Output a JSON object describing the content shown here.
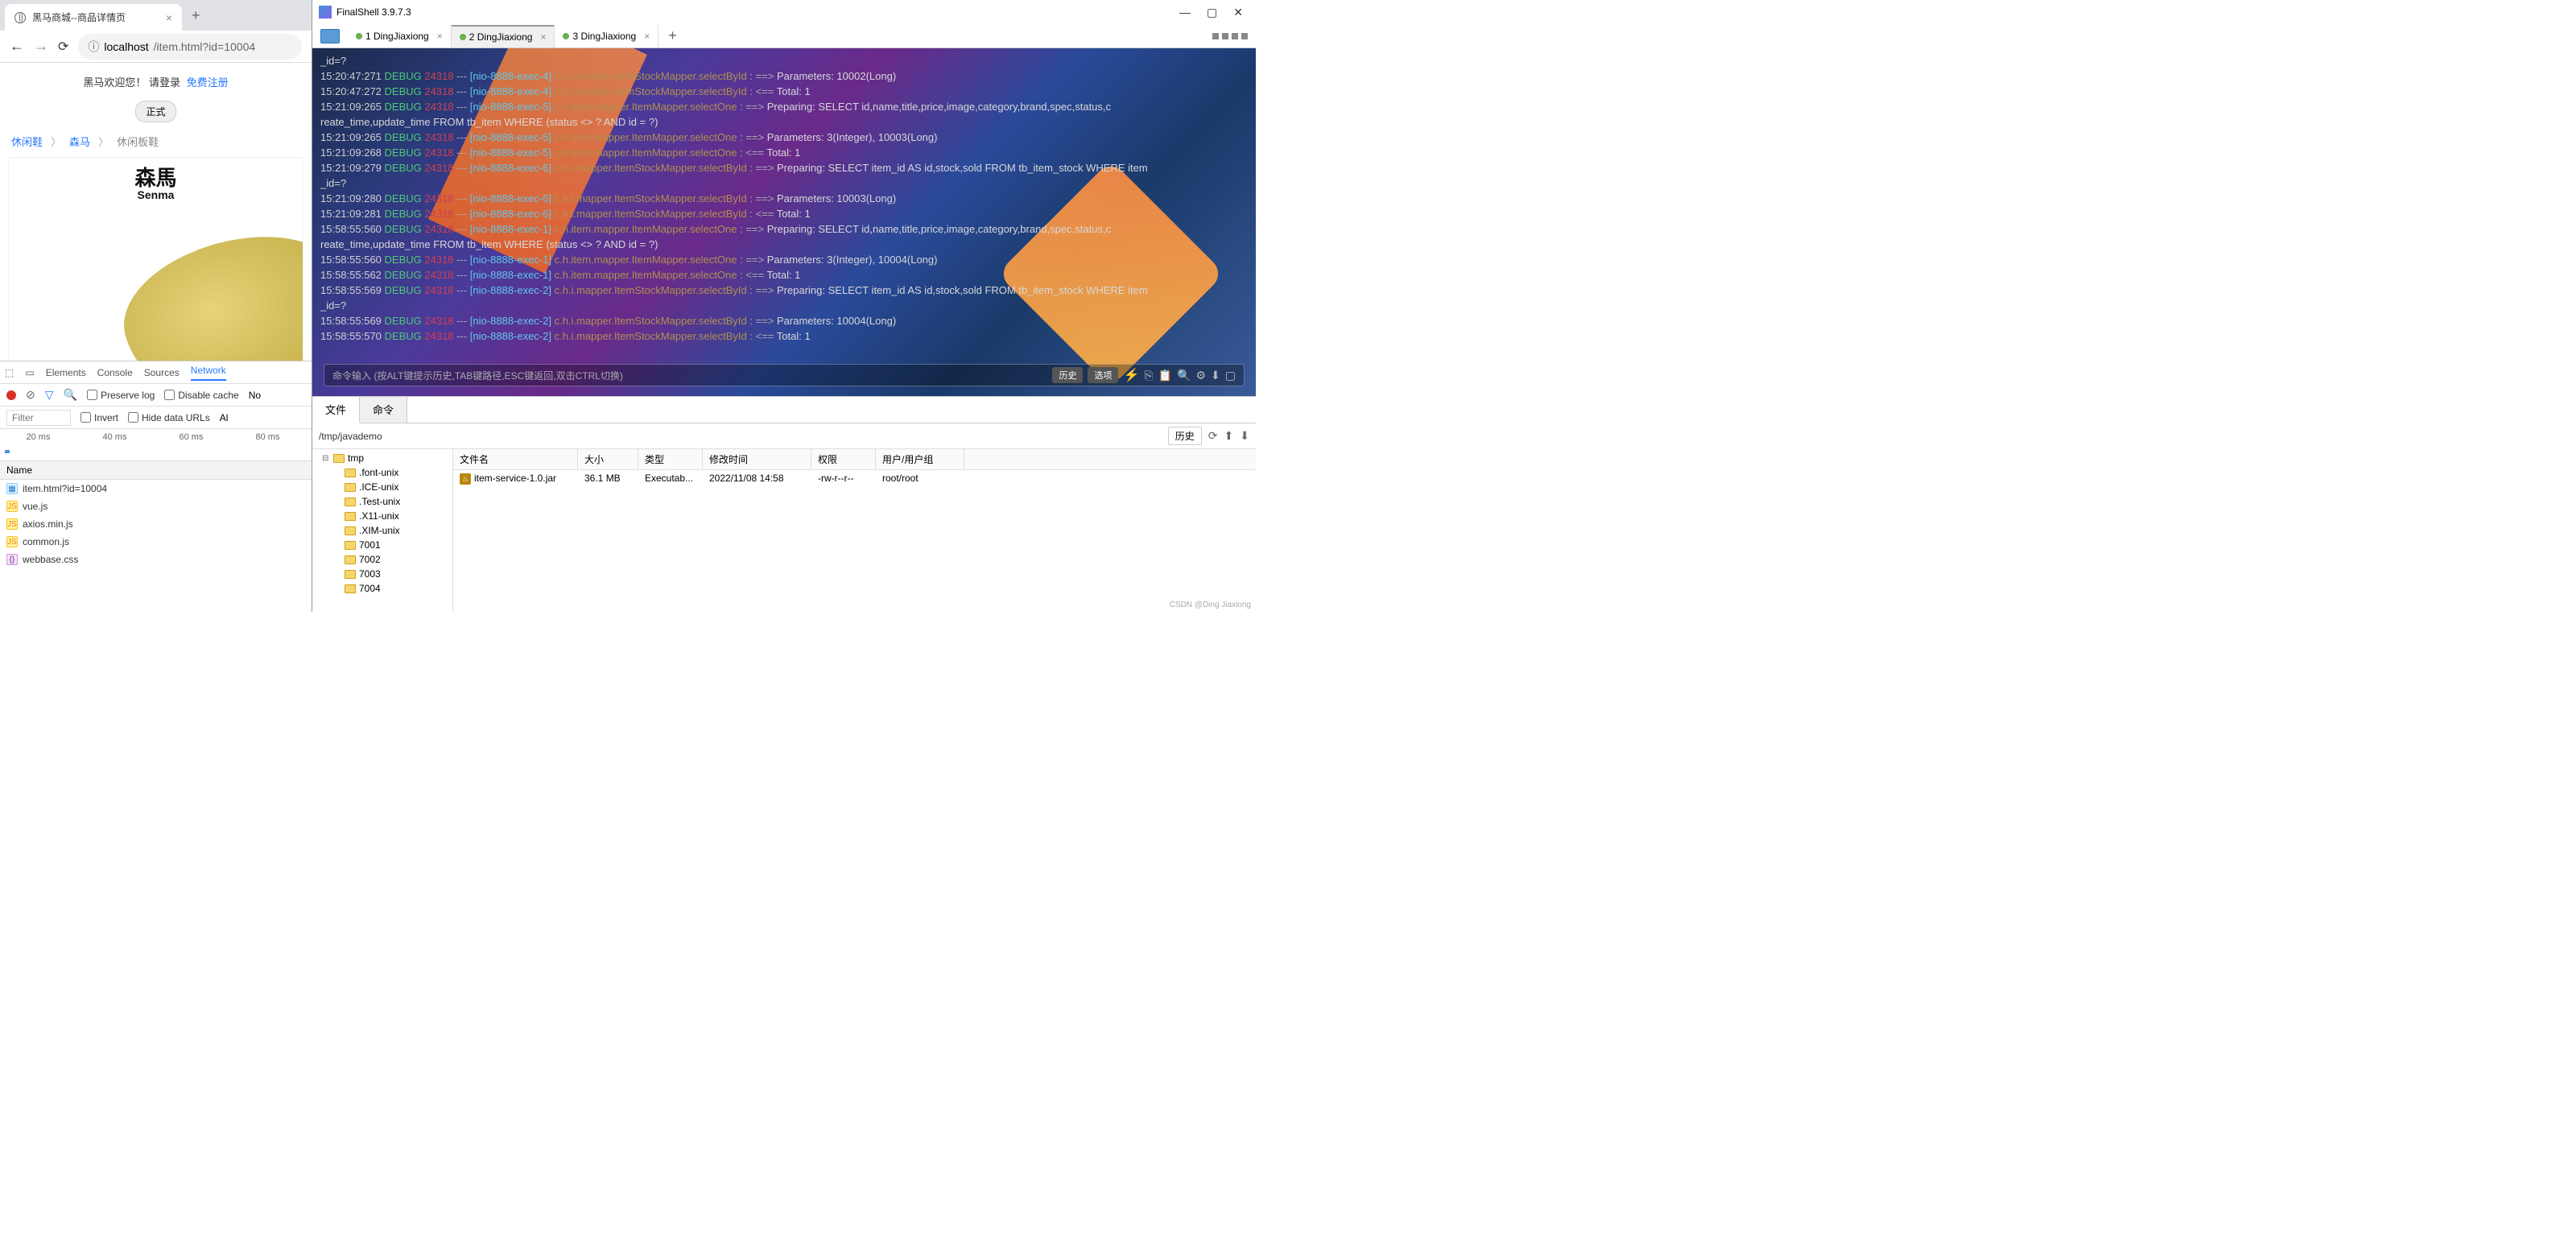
{
  "browser": {
    "tab_title": "黑马商城--商品详情页",
    "url_prefix": "localhost",
    "url_path": "/item.html?id=10004",
    "welcome": "黑马欢迎您！",
    "login": "请登录",
    "register": "免费注册",
    "badge": "正式",
    "breadcrumb": {
      "c1": "休闲鞋",
      "c2": "森马",
      "c3": "休闲板鞋",
      "sep": "〉"
    },
    "brand_cn": "森馬",
    "brand_en": "Senma"
  },
  "devtools": {
    "tabs": [
      "Elements",
      "Console",
      "Sources",
      "Network"
    ],
    "active_tab": "Network",
    "preserve": "Preserve log",
    "disable": "Disable cache",
    "more": "No",
    "filter_placeholder": "Filter",
    "invert": "Invert",
    "hide_data": "Hide data URLs",
    "all": "Al",
    "wf": [
      "20 ms",
      "40 ms",
      "60 ms",
      "80 ms"
    ],
    "name_hdr": "Name",
    "files": [
      {
        "name": "item.html?id=10004",
        "t": "html"
      },
      {
        "name": "vue.js",
        "t": "js"
      },
      {
        "name": "axios.min.js",
        "t": "js"
      },
      {
        "name": "common.js",
        "t": "js"
      },
      {
        "name": "webbase.css",
        "t": "css"
      }
    ]
  },
  "finalshell": {
    "title": "FinalShell 3.9.7.3",
    "tabs": [
      {
        "label": "1 DingJiaxiong",
        "active": false
      },
      {
        "label": "2 DingJiaxiong",
        "active": true
      },
      {
        "label": "3 DingJiaxiong",
        "active": false
      }
    ],
    "cmd_placeholder": "命令输入 (按ALT键提示历史,TAB键路径,ESC键返回,双击CTRL切换)",
    "history_btn": "历史",
    "option_btn": "选项",
    "log_lines": [
      {
        "raw": "_id=?"
      },
      {
        "ts": "15:20:47:271",
        "d": "DEBUG",
        "th": "24318",
        "br": "[nio-8888-exec-4]",
        "mp": "c.h.i.mapper.ItemStockMapper.selectById",
        "ar": "==>",
        "msg": "Parameters: 10002(Long)"
      },
      {
        "ts": "15:20:47:272",
        "d": "DEBUG",
        "th": "24318",
        "br": "[nio-8888-exec-4]",
        "mp": "c.h.i.mapper.ItemStockMapper.selectById",
        "ar": "<==",
        "msg": "     Total: 1"
      },
      {
        "ts": "15:21:09:265",
        "d": "DEBUG",
        "th": "24318",
        "br": "[nio-8888-exec-5]",
        "mp": "c.h.item.mapper.ItemMapper.selectOne",
        "ar": "==>",
        "msg": " Preparing: SELECT id,name,title,price,image,category,brand,spec,status,c"
      },
      {
        "raw": "reate_time,update_time FROM tb_item WHERE (status <> ? AND id = ?)"
      },
      {
        "ts": "15:21:09:265",
        "d": "DEBUG",
        "th": "24318",
        "br": "[nio-8888-exec-5]",
        "mp": "c.h.item.mapper.ItemMapper.selectOne",
        "ar": "==>",
        "msg": "Parameters: 3(Integer), 10003(Long)"
      },
      {
        "ts": "15:21:09:268",
        "d": "DEBUG",
        "th": "24318",
        "br": "[nio-8888-exec-5]",
        "mp": "c.h.item.mapper.ItemMapper.selectOne",
        "ar": "<==",
        "msg": "     Total: 1"
      },
      {
        "ts": "15:21:09:279",
        "d": "DEBUG",
        "th": "24318",
        "br": "[nio-8888-exec-6]",
        "mp": "c.h.i.mapper.ItemStockMapper.selectById",
        "ar": "==>",
        "msg": " Preparing: SELECT item_id AS id,stock,sold FROM tb_item_stock WHERE item"
      },
      {
        "raw": "_id=?"
      },
      {
        "ts": "15:21:09:280",
        "d": "DEBUG",
        "th": "24318",
        "br": "[nio-8888-exec-6]",
        "mp": "c.h.i.mapper.ItemStockMapper.selectById",
        "ar": "==>",
        "msg": "Parameters: 10003(Long)"
      },
      {
        "ts": "15:21:09:281",
        "d": "DEBUG",
        "th": "24318",
        "br": "[nio-8888-exec-6]",
        "mp": "c.h.i.mapper.ItemStockMapper.selectById",
        "ar": "<==",
        "msg": "     Total: 1"
      },
      {
        "ts": "15:58:55:560",
        "d": "DEBUG",
        "th": "24318",
        "br": "[nio-8888-exec-1]",
        "mp": "c.h.item.mapper.ItemMapper.selectOne",
        "ar": "==>",
        "msg": " Preparing: SELECT id,name,title,price,image,category,brand,spec,status,c"
      },
      {
        "raw": "reate_time,update_time FROM tb_item WHERE (status <> ? AND id = ?)"
      },
      {
        "ts": "15:58:55:560",
        "d": "DEBUG",
        "th": "24318",
        "br": "[nio-8888-exec-1]",
        "mp": "c.h.item.mapper.ItemMapper.selectOne",
        "ar": "==>",
        "msg": "Parameters: 3(Integer), 10004(Long)"
      },
      {
        "ts": "15:58:55:562",
        "d": "DEBUG",
        "th": "24318",
        "br": "[nio-8888-exec-1]",
        "mp": "c.h.item.mapper.ItemMapper.selectOne",
        "ar": "<==",
        "msg": "     Total: 1"
      },
      {
        "ts": "15:58:55:569",
        "d": "DEBUG",
        "th": "24318",
        "br": "[nio-8888-exec-2]",
        "mp": "c.h.i.mapper.ItemStockMapper.selectById",
        "ar": "==>",
        "msg": " Preparing: SELECT item_id AS id,stock,sold FROM tb_item_stock WHERE item"
      },
      {
        "raw": "_id=?"
      },
      {
        "ts": "15:58:55:569",
        "d": "DEBUG",
        "th": "24318",
        "br": "[nio-8888-exec-2]",
        "mp": "c.h.i.mapper.ItemStockMapper.selectById",
        "ar": "==>",
        "msg": "Parameters: 10004(Long)"
      },
      {
        "ts": "15:58:55:570",
        "d": "DEBUG",
        "th": "24318",
        "br": "[nio-8888-exec-2]",
        "mp": "c.h.i.mapper.ItemStockMapper.selectById",
        "ar": "<==",
        "msg": "     Total: 1"
      }
    ]
  },
  "filepanel": {
    "tab_file": "文件",
    "tab_cmd": "命令",
    "path": "/tmp/javademo",
    "history_btn": "历史",
    "tree_root": "tmp",
    "tree_items": [
      ".font-unix",
      ".ICE-unix",
      ".Test-unix",
      ".X11-unix",
      ".XIM-unix",
      "7001",
      "7002",
      "7003",
      "7004"
    ],
    "cols": {
      "name": "文件名",
      "size": "大小",
      "type": "类型",
      "mod": "修改时间",
      "perm": "权限",
      "user": "用户/用户组"
    },
    "rows": [
      {
        "name": "item-service-1.0.jar",
        "size": "36.1 MB",
        "type": "Executab...",
        "mod": "2022/11/08 14:58",
        "perm": "-rw-r--r--",
        "user": "root/root"
      }
    ]
  },
  "watermark": "CSDN @Ding Jiaxiong"
}
